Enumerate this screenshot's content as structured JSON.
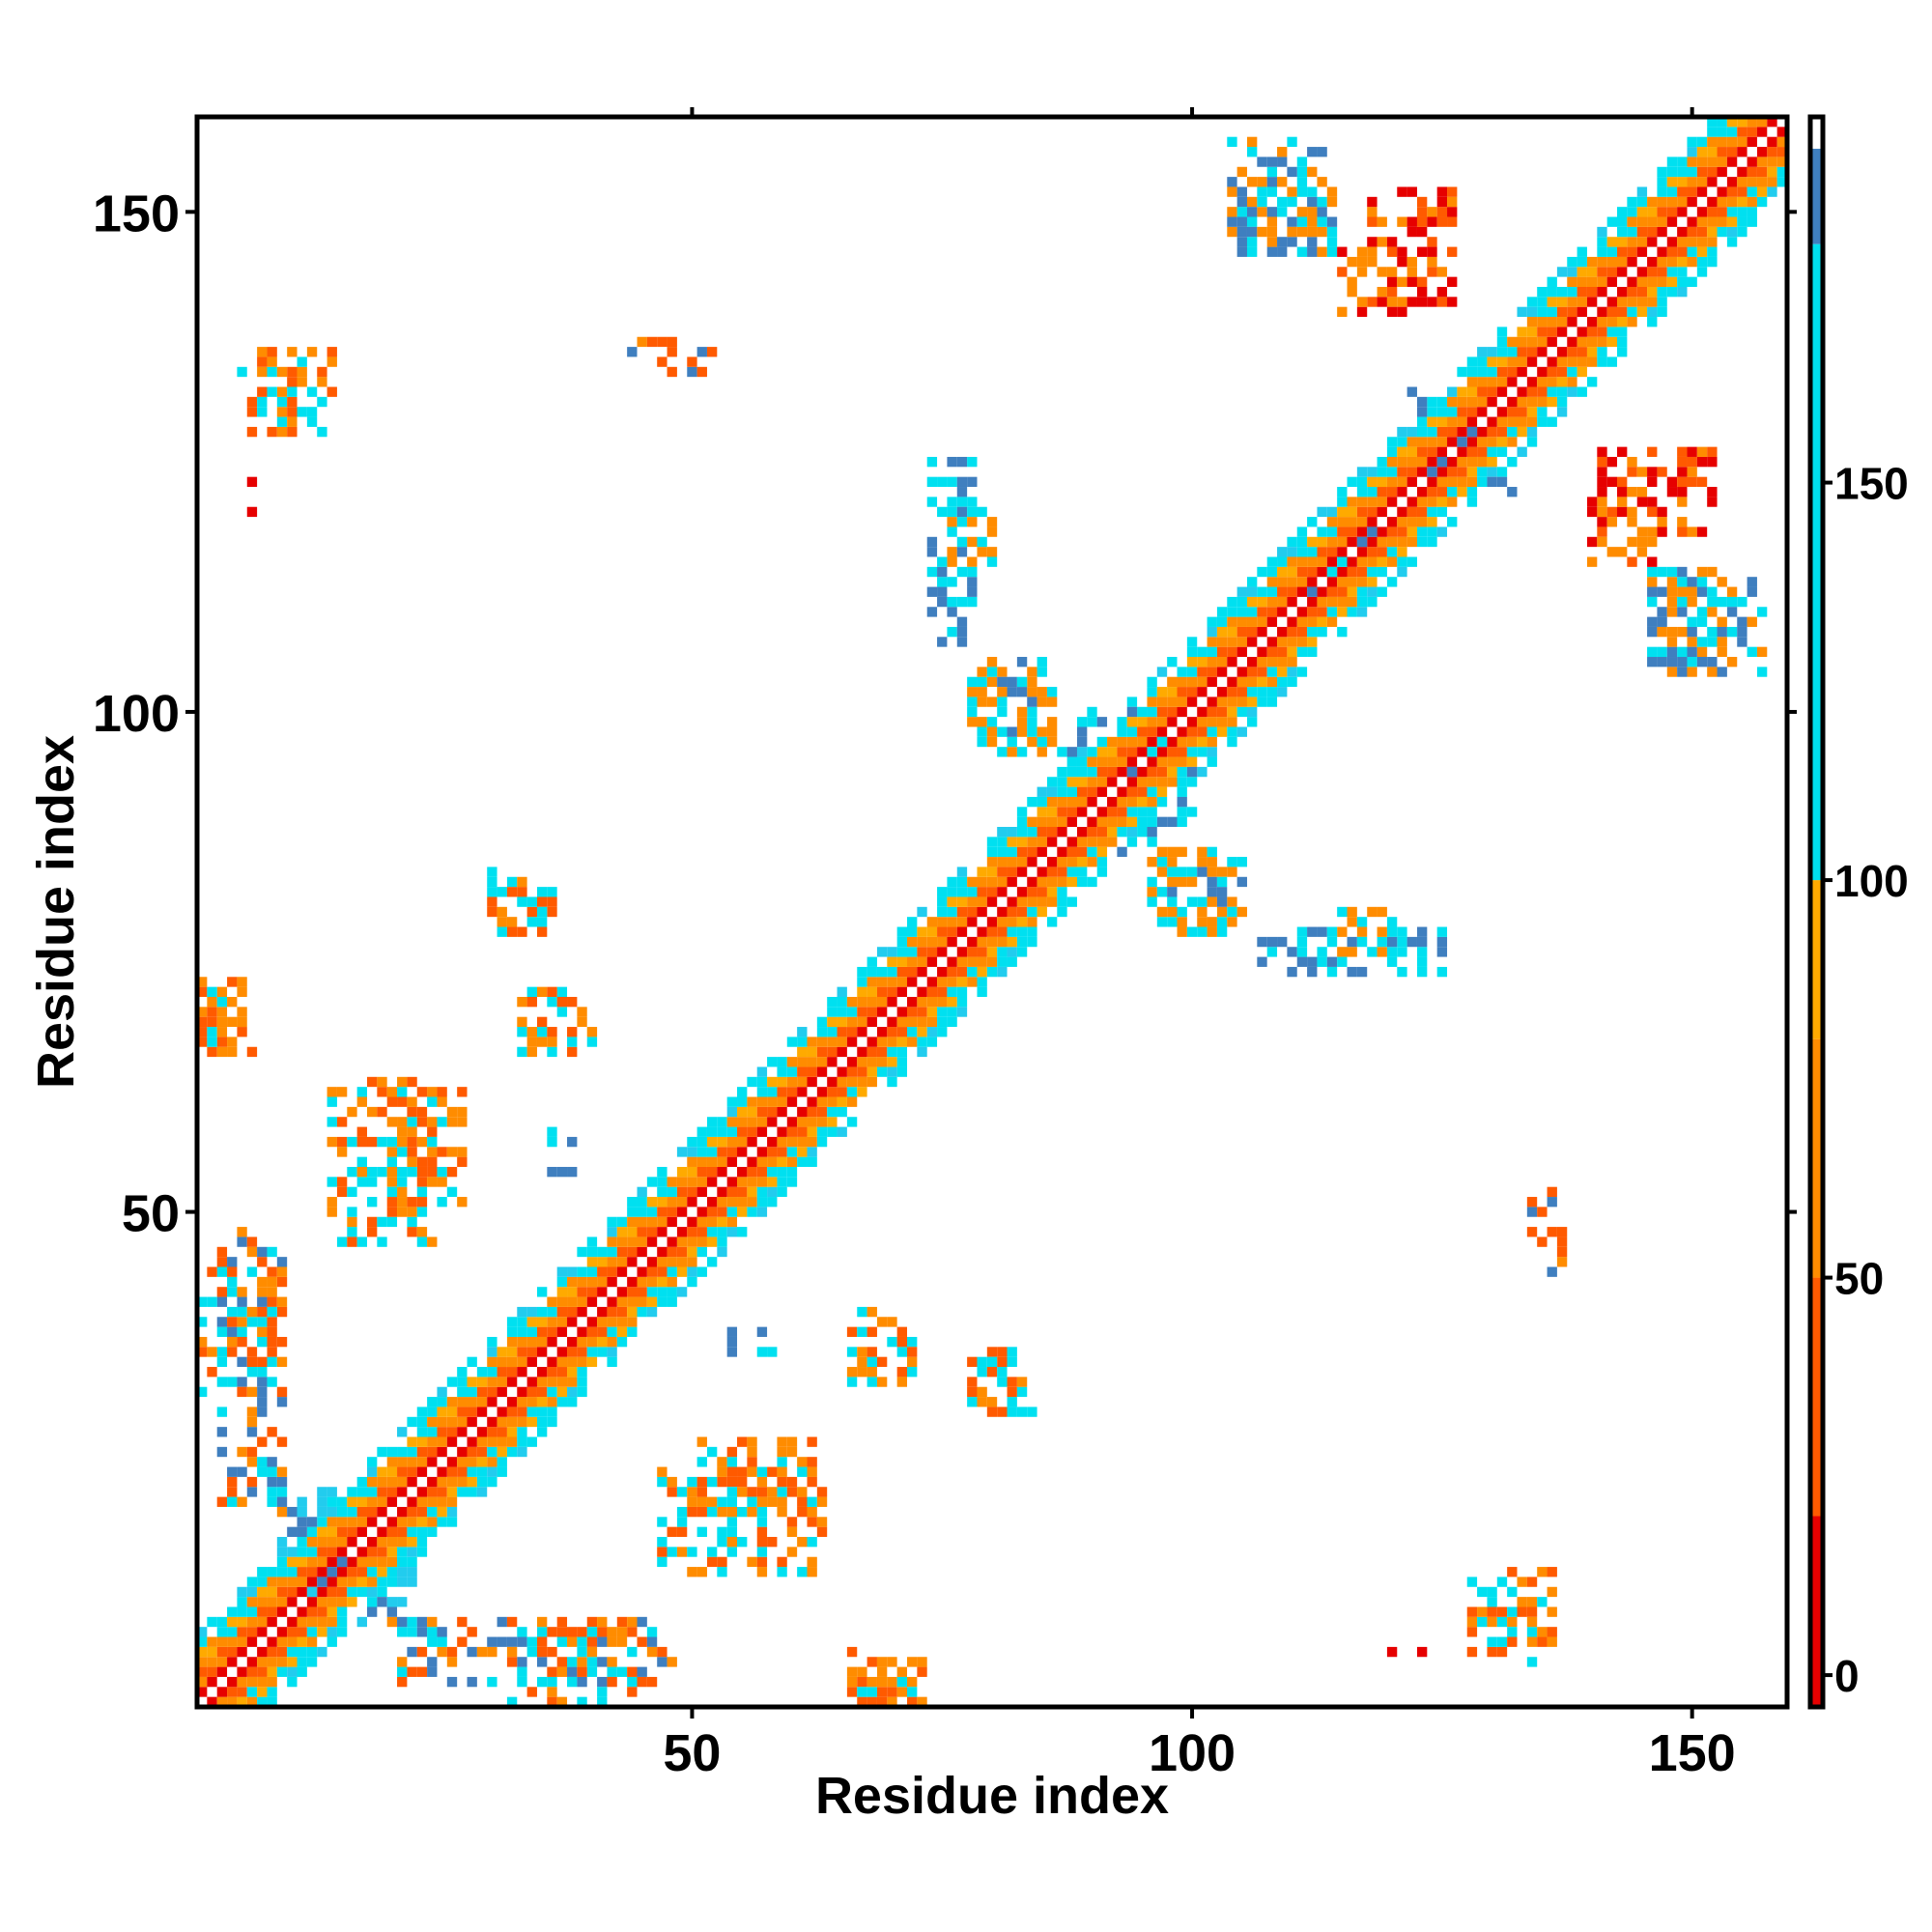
{
  "chart_data": {
    "type": "heatmap",
    "title": "",
    "xlabel": "Residue index",
    "ylabel": "Residue index",
    "xlim": [
      0.5,
      159.5
    ],
    "ylim": [
      0.5,
      159.5
    ],
    "x_ticks": [
      50,
      100,
      150
    ],
    "y_ticks": [
      50,
      100,
      150
    ],
    "colorbar": {
      "ticks": [
        0,
        50,
        100,
        150
      ],
      "range": [
        -4,
        196
      ],
      "stops": [
        {
          "from": -4,
          "to": 20,
          "color": "#e60000"
        },
        {
          "from": 20,
          "to": 50,
          "color": "#ff5a00"
        },
        {
          "from": 50,
          "to": 80,
          "color": "#ff8c00"
        },
        {
          "from": 80,
          "to": 100,
          "color": "#ffaa00"
        },
        {
          "from": 100,
          "to": 180,
          "color": "#00e0f0"
        },
        {
          "from": 180,
          "to": 192,
          "color": "#3f7fbf"
        },
        {
          "from": 192,
          "to": 196,
          "color": "#ffffff"
        }
      ]
    },
    "palette": {
      "red": "#e60000",
      "orange_red": "#ff5a00",
      "orange": "#ff8c00",
      "amber": "#ffaa00",
      "cyan": "#00e0f0",
      "light_cyan": "#22ccee",
      "steel_blue": "#3f7fbf"
    },
    "diagonal_band": {
      "residues": [
        1,
        159
      ],
      "band_width": 7,
      "pattern": [
        "red",
        "orange_red",
        "orange",
        "cyan",
        "amber"
      ]
    },
    "clusters": [
      {
        "x": [
          5,
          13
        ],
        "y": [
          128,
          134
        ],
        "colors": [
          "cyan",
          "orange",
          "orange_red"
        ]
      },
      {
        "x": [
          3,
          9
        ],
        "y": [
          20,
          48
        ],
        "colors": [
          "cyan",
          "orange",
          "orange_red",
          "steel_blue"
        ]
      },
      {
        "x": [
          1,
          6
        ],
        "y": [
          66,
          72
        ],
        "colors": [
          "orange",
          "orange_red"
        ]
      },
      {
        "x": [
          33,
          40
        ],
        "y": [
          66,
          72
        ],
        "colors": [
          "orange_red",
          "orange",
          "cyan"
        ]
      },
      {
        "x": [
          30,
          36
        ],
        "y": [
          78,
          82
        ],
        "colors": [
          "orange_red",
          "cyan"
        ]
      },
      {
        "x": [
          32,
          44
        ],
        "y": [
          1,
          8
        ],
        "colors": [
          "orange_red",
          "orange",
          "cyan"
        ]
      },
      {
        "x": [
          67,
          73
        ],
        "y": [
          1,
          5
        ],
        "colors": [
          "orange_red",
          "orange",
          "cyan"
        ]
      },
      {
        "x": [
          68,
          72
        ],
        "y": [
          33,
          37
        ],
        "colors": [
          "orange_red",
          "orange"
        ]
      },
      {
        "x": [
          12,
          22
        ],
        "y": [
          8,
          22
        ],
        "colors": [
          "light_cyan",
          "steel_blue"
        ]
      },
      {
        "x": [
          76,
          80
        ],
        "y": [
          115,
          121
        ],
        "colors": [
          "cyan",
          "orange"
        ]
      },
      {
        "x": [
          79,
          86
        ],
        "y": [
          97,
          104
        ],
        "colors": [
          "cyan",
          "orange"
        ]
      },
      {
        "x": [
          89,
          97
        ],
        "y": [
          86,
          100
        ],
        "colors": [
          "cyan",
          "steel_blue"
        ]
      },
      {
        "x": [
          96,
          105
        ],
        "y": [
          78,
          86
        ],
        "colors": [
          "cyan",
          "orange",
          "steel_blue"
        ]
      },
      {
        "x": [
          107,
          125
        ],
        "y": [
          74,
          78
        ],
        "colors": [
          "cyan",
          "steel_blue"
        ]
      },
      {
        "x": [
          104,
          114
        ],
        "y": [
          146,
          157
        ],
        "colors": [
          "cyan",
          "steel_blue",
          "orange"
        ]
      },
      {
        "x": [
          118,
          126
        ],
        "y": [
          141,
          152
        ],
        "colors": [
          "orange_red",
          "orange",
          "red"
        ]
      },
      {
        "x": [
          112,
          118
        ],
        "y": [
          112,
          118
        ],
        "colors": [
          "cyan",
          "steel_blue"
        ]
      },
      {
        "x": [
          124,
          132
        ],
        "y": [
          122,
          128
        ],
        "colors": [
          "cyan",
          "steel_blue"
        ]
      },
      {
        "x": [
          136,
          142
        ],
        "y": [
          134,
          140
        ],
        "colors": [
          "cyan",
          "steel_blue"
        ]
      },
      {
        "x": [
          140,
          146
        ],
        "y": [
          115,
          124
        ],
        "colors": [
          "orange_red",
          "orange",
          "red"
        ]
      },
      {
        "x": [
          146,
          154
        ],
        "y": [
          105,
          112
        ],
        "colors": [
          "cyan",
          "steel_blue",
          "orange"
        ]
      },
      {
        "x": [
          130,
          136
        ],
        "y": [
          7,
          14
        ],
        "colors": [
          "orange",
          "orange_red",
          "cyan"
        ]
      },
      {
        "x": [
          117,
          124
        ],
        "y": [
          5,
          6
        ],
        "colors": [
          "orange_red",
          "red"
        ]
      },
      {
        "x": [
          135,
          137
        ],
        "y": [
          44,
          48
        ],
        "colors": [
          "orange",
          "orange_red",
          "steel_blue"
        ]
      },
      {
        "x": [
          54,
          58
        ],
        "y": [
          36,
          38
        ],
        "colors": [
          "cyan",
          "steel_blue"
        ]
      },
      {
        "x": [
          79,
          84
        ],
        "y": [
          30,
          35
        ],
        "colors": [
          "cyan",
          "orange"
        ]
      },
      {
        "x": [
          47,
          63
        ],
        "y": [
          14,
          24
        ],
        "colors": [
          "orange",
          "orange_red",
          "cyan"
        ]
      },
      {
        "x": [
          20,
          27
        ],
        "y": [
          50,
          62
        ],
        "colors": [
          "orange",
          "orange_red",
          "cyan"
        ]
      },
      {
        "x": [
          48,
          52
        ],
        "y": [
          134,
          136
        ],
        "colors": [
          "orange_red",
          "cyan",
          "steel_blue"
        ]
      }
    ]
  }
}
